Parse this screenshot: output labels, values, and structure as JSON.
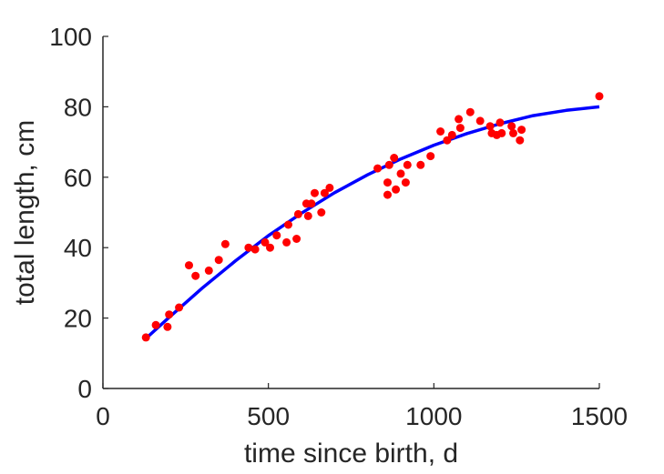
{
  "chart_data": {
    "type": "scatter",
    "title": "",
    "xlabel": "time since birth, d",
    "ylabel": "total length, cm",
    "xlim": [
      0,
      1500
    ],
    "ylim": [
      0,
      100
    ],
    "xticks": [
      0,
      500,
      1000,
      1500
    ],
    "yticks": [
      0,
      20,
      40,
      60,
      80,
      100
    ],
    "grid": false,
    "series": [
      {
        "kind": "points",
        "color": "#ff0000",
        "points": [
          [
            130,
            14.5
          ],
          [
            160,
            18
          ],
          [
            195,
            17.5
          ],
          [
            200,
            21
          ],
          [
            230,
            23
          ],
          [
            260,
            35
          ],
          [
            280,
            32
          ],
          [
            320,
            33.5
          ],
          [
            350,
            36.5
          ],
          [
            370,
            41
          ],
          [
            440,
            40
          ],
          [
            460,
            39.5
          ],
          [
            490,
            41.5
          ],
          [
            505,
            40
          ],
          [
            525,
            43.5
          ],
          [
            555,
            41.5
          ],
          [
            560,
            46.5
          ],
          [
            585,
            42.5
          ],
          [
            590,
            49.5
          ],
          [
            615,
            52.5
          ],
          [
            620,
            49
          ],
          [
            630,
            52.5
          ],
          [
            640,
            55.5
          ],
          [
            660,
            50
          ],
          [
            670,
            55.5
          ],
          [
            685,
            57
          ],
          [
            830,
            62.5
          ],
          [
            860,
            55
          ],
          [
            860,
            58.5
          ],
          [
            865,
            63.5
          ],
          [
            880,
            65.5
          ],
          [
            885,
            56.5
          ],
          [
            900,
            61
          ],
          [
            915,
            58.5
          ],
          [
            920,
            63.5
          ],
          [
            960,
            63.5
          ],
          [
            990,
            66
          ],
          [
            1020,
            73
          ],
          [
            1040,
            70.5
          ],
          [
            1055,
            72
          ],
          [
            1075,
            76.5
          ],
          [
            1080,
            74
          ],
          [
            1110,
            78.5
          ],
          [
            1140,
            76
          ],
          [
            1170,
            74.5
          ],
          [
            1175,
            72.5
          ],
          [
            1190,
            72
          ],
          [
            1200,
            75.5
          ],
          [
            1205,
            72.5
          ],
          [
            1235,
            74.5
          ],
          [
            1240,
            72.5
          ],
          [
            1260,
            70.5
          ],
          [
            1265,
            73.5
          ],
          [
            1500,
            83
          ]
        ]
      },
      {
        "kind": "line",
        "color": "#0000ff",
        "points": [
          [
            130,
            14.2
          ],
          [
            200,
            20.2
          ],
          [
            300,
            28.5
          ],
          [
            400,
            36.2
          ],
          [
            500,
            43.4
          ],
          [
            600,
            49.8
          ],
          [
            700,
            55.6
          ],
          [
            800,
            60.7
          ],
          [
            900,
            65.2
          ],
          [
            1000,
            69.1
          ],
          [
            1100,
            72.4
          ],
          [
            1200,
            75.2
          ],
          [
            1300,
            77.5
          ],
          [
            1400,
            79.0
          ],
          [
            1500,
            80.0
          ]
        ]
      }
    ]
  }
}
